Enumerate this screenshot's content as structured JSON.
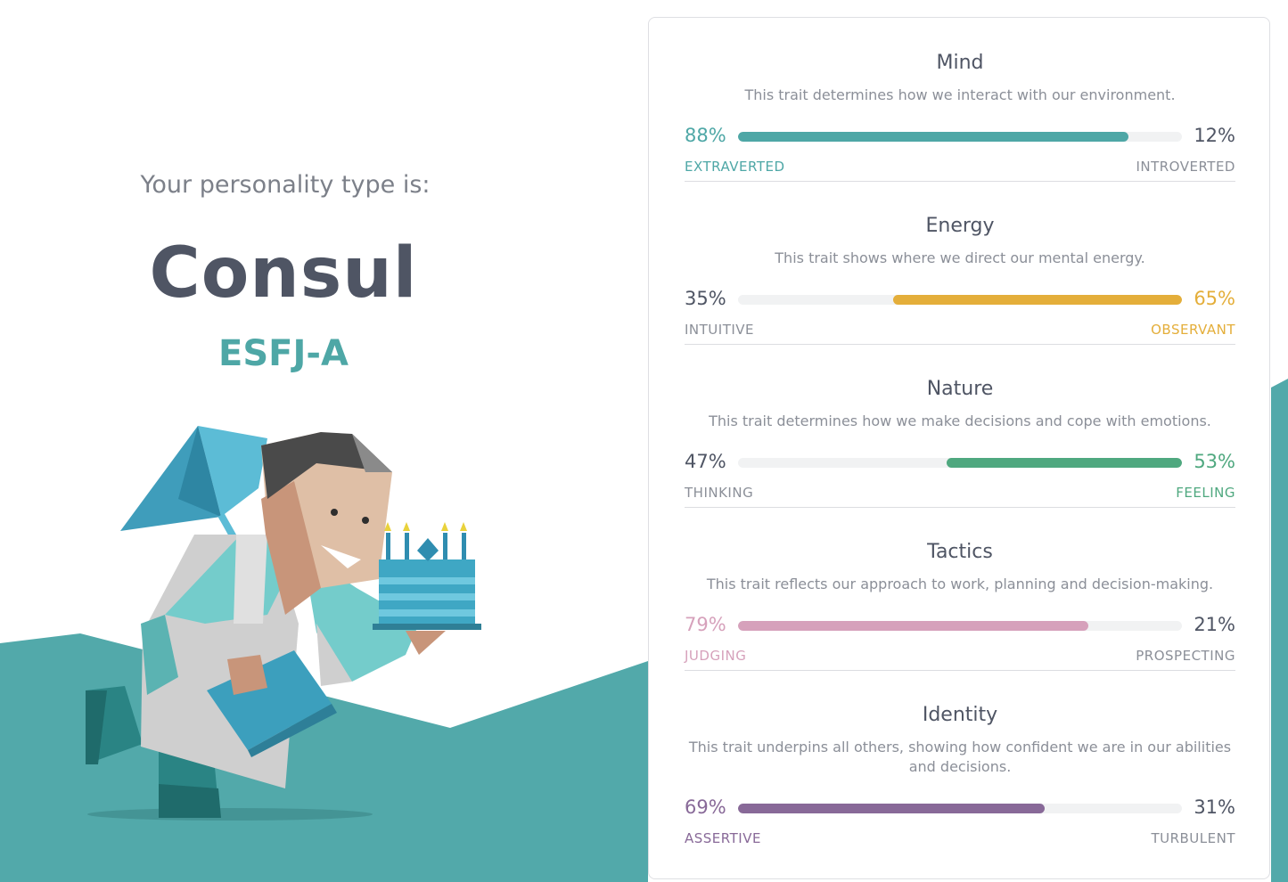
{
  "intro_text": "Your personality type is:",
  "type_name": "Consul",
  "type_code": "ESFJ-A",
  "colors": {
    "teal_bg": "#52a9aa",
    "mind": "#4ea7a6",
    "energy": "#e4ae3a",
    "nature": "#4fa87f",
    "tactics": "#d6a1bb",
    "identity": "#886998",
    "text_dark": "#4f5564",
    "text_muted": "#8b8f98"
  },
  "traits": [
    {
      "title": "Mind",
      "description": "This trait determines how we interact with our environment.",
      "left_pct": "88%",
      "right_pct": "12%",
      "left_label": "EXTRAVERTED",
      "right_label": "INTROVERTED",
      "dominant": "left",
      "value": 88,
      "color": "#4ea7a6"
    },
    {
      "title": "Energy",
      "description": "This trait shows where we direct our mental energy.",
      "left_pct": "35%",
      "right_pct": "65%",
      "left_label": "INTUITIVE",
      "right_label": "OBSERVANT",
      "dominant": "right",
      "value": 65,
      "color": "#e4ae3a"
    },
    {
      "title": "Nature",
      "description": "This trait determines how we make decisions and cope with emotions.",
      "left_pct": "47%",
      "right_pct": "53%",
      "left_label": "THINKING",
      "right_label": "FEELING",
      "dominant": "right",
      "value": 53,
      "color": "#4fa87f"
    },
    {
      "title": "Tactics",
      "description": "This trait reflects our approach to work, planning and decision-making.",
      "left_pct": "79%",
      "right_pct": "21%",
      "left_label": "JUDGING",
      "right_label": "PROSPECTING",
      "dominant": "left",
      "value": 79,
      "color": "#d6a1bb"
    },
    {
      "title": "Identity",
      "description": "This trait underpins all others, showing how confident we are in our abilities and decisions.",
      "left_pct": "69%",
      "right_pct": "31%",
      "left_label": "ASSERTIVE",
      "right_label": "TURBULENT",
      "dominant": "left",
      "value": 69,
      "color": "#886998"
    }
  ]
}
